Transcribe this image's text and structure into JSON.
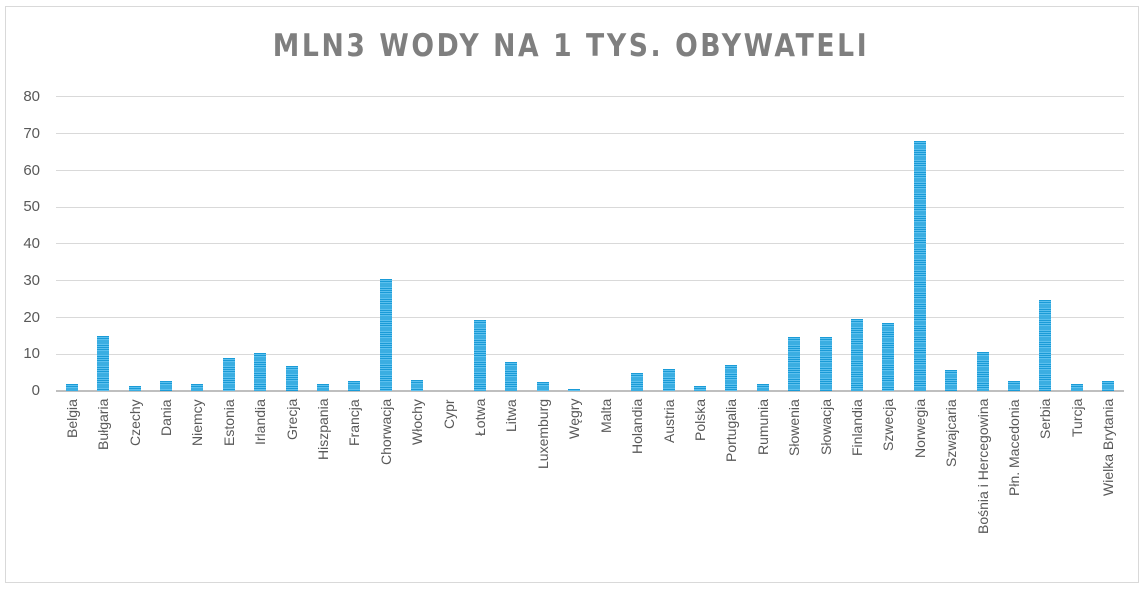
{
  "chart_data": {
    "type": "bar",
    "title": "MLN3 WODY NA 1 TYS. OBYWATELI",
    "xlabel": "",
    "ylabel": "",
    "ylim": [
      0,
      80
    ],
    "yticks": [
      0,
      10,
      20,
      30,
      40,
      50,
      60,
      70,
      80
    ],
    "grid": true,
    "legend": "none",
    "bar_color": "#1a9bd7",
    "categories": [
      "Belgia",
      "Bułgaria",
      "Czechy",
      "Dania",
      "Niemcy",
      "Estonia",
      "Irlandia",
      "Grecja",
      "Hiszpania",
      "Francja",
      "Chorwacja",
      "Włochy",
      "Cypr",
      "Łotwa",
      "Litwa",
      "Luxemburg",
      "Węgry",
      "Malta",
      "Holandia",
      "Austria",
      "Polska",
      "Portugalia",
      "Rumunia",
      "Słowenia",
      "Słowacja",
      "Finlandia",
      "Szwecja",
      "Norwegia",
      "Szwajcaria",
      "Bośnia i Hercegowina",
      "Płn. Macedonia",
      "Serbia",
      "Turcja",
      "Wielka Brytania"
    ],
    "values": [
      1.9,
      15.0,
      1.4,
      2.7,
      1.9,
      9.0,
      10.4,
      6.8,
      1.9,
      2.8,
      30.4,
      3.0,
      0,
      19.3,
      7.9,
      2.4,
      0.5,
      0,
      5.0,
      6.0,
      1.4,
      7.1,
      1.9,
      14.7,
      14.7,
      19.6,
      18.5,
      68.0,
      5.7,
      10.6,
      2.8,
      24.7,
      1.9,
      2.8
    ]
  }
}
